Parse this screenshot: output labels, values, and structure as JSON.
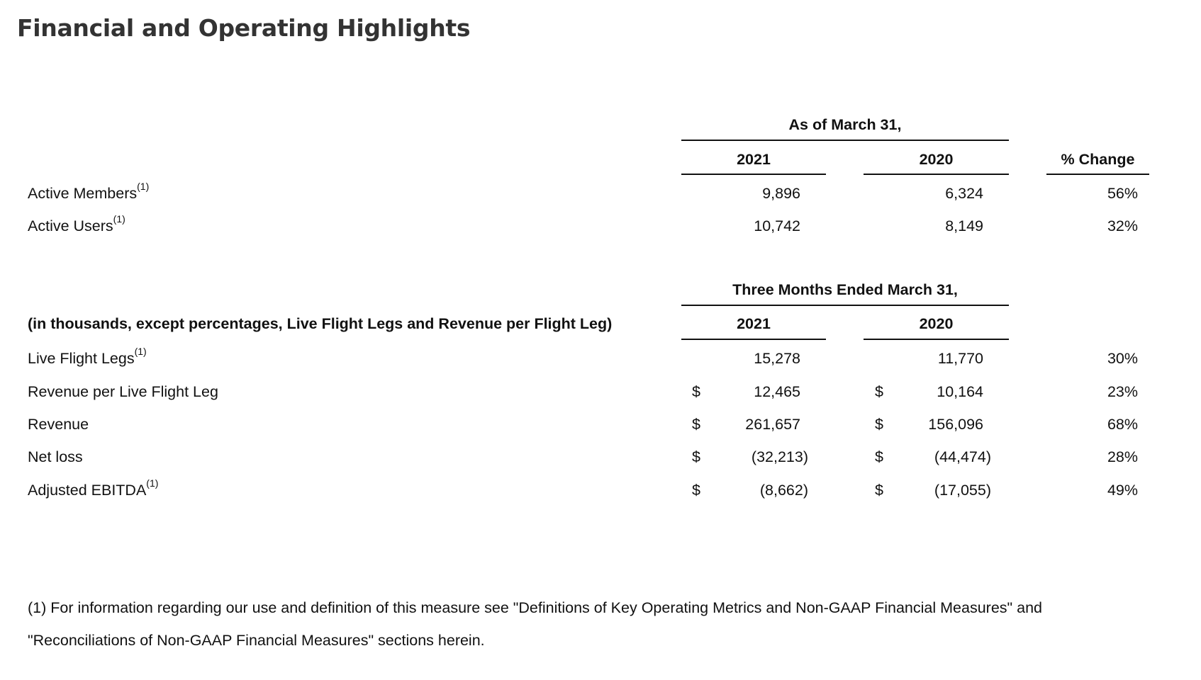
{
  "title": "Financial and Operating Highlights",
  "section1": {
    "group_header": "As of March 31,",
    "col_2021": "2021",
    "col_2020": "2020",
    "col_change": "% Change",
    "rows": [
      {
        "label": "Active Members",
        "footnote": "(1)",
        "v2021": "9,896",
        "v2020": "6,324",
        "change": "56%"
      },
      {
        "label": "Active Users",
        "footnote": "(1)",
        "v2021": "10,742",
        "v2020": "8,149",
        "change": "32%"
      }
    ]
  },
  "section2": {
    "group_header": "Three Months Ended March 31,",
    "row_header": "(in thousands, except percentages, Live Flight Legs and Revenue per Flight Leg)",
    "col_2021": "2021",
    "col_2020": "2020",
    "currency": "$",
    "rows": [
      {
        "label": "Live Flight Legs",
        "footnote": "(1)",
        "v2021": "15,278",
        "v2020": "11,770",
        "change": "30%"
      },
      {
        "label": "Revenue per Live Flight Leg",
        "footnote": "",
        "v2021": "12,465",
        "v2020": "10,164",
        "change": "23%"
      },
      {
        "label": "Revenue",
        "footnote": "",
        "v2021": "261,657",
        "v2020": "156,096",
        "change": "68%"
      },
      {
        "label": "Net loss",
        "footnote": "",
        "v2021": "(32,213)",
        "v2020": "(44,474)",
        "change": "28%"
      },
      {
        "label": "Adjusted EBITDA",
        "footnote": "(1)",
        "v2021": "(8,662)",
        "v2020": "(17,055)",
        "change": "49%"
      }
    ]
  },
  "footnote": {
    "line1": " (1) For information regarding our use and definition of this measure see \"Definitions of Key Operating Metrics and Non-GAAP Financial Measures\" and",
    "line2": "\"Reconciliations of Non-GAAP Financial Measures\" sections herein."
  }
}
